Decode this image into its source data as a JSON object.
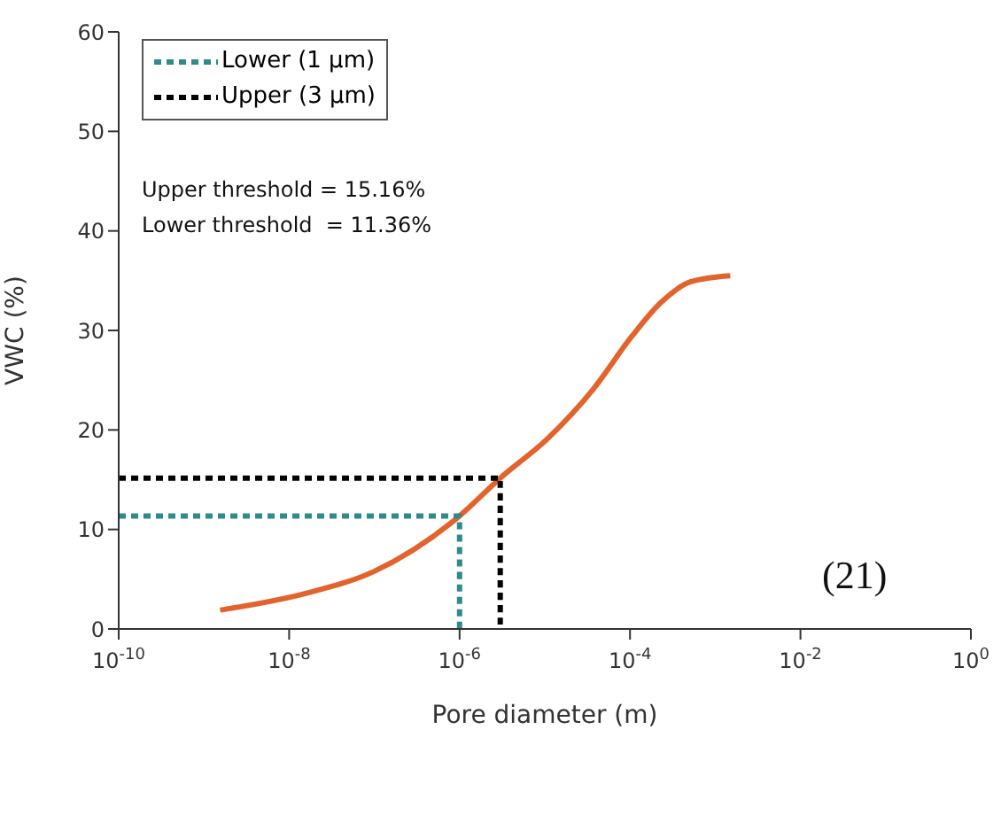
{
  "chart_data": {
    "type": "line",
    "xlabel": "Pore diameter (m)",
    "ylabel": "VWC (%)",
    "log": "x",
    "xlim": [
      1e-10,
      1
    ],
    "ylim": [
      0,
      60
    ],
    "xticks": [
      {
        "value": 1e-10,
        "label": "10$^{-10}$"
      },
      {
        "value": 1e-08,
        "label": "10$^{-8}$"
      },
      {
        "value": 1e-06,
        "label": "10$^{-6}$"
      },
      {
        "value": 0.0001,
        "label": "10$^{-4}$"
      },
      {
        "value": 0.01,
        "label": "10$^{-2}$"
      },
      {
        "value": 1,
        "label": "10$^{0}$"
      }
    ],
    "yticks": [
      0,
      10,
      20,
      30,
      40,
      50,
      60
    ],
    "legend": "top left",
    "marker": "none",
    "series": [
      {
        "color": "#e2632c",
        "line_style": "solid",
        "x": [
          1.55e-09,
          1.6e-08,
          1e-07,
          1e-06,
          3e-06,
          1.1e-05,
          3.7e-05,
          0.000105,
          0.00023,
          0.00052,
          0.0015
        ],
        "values": [
          1.9,
          3.6,
          5.8,
          11.36,
          15.16,
          19.2,
          24.1,
          29.4,
          32.8,
          34.9,
          35.5
        ]
      },
      {
        "name": "Lower (1 µm)",
        "color": "#2e8b88",
        "line_style": "dotted",
        "x": [
          1e-10,
          1e-06,
          1e-06
        ],
        "values": [
          11.36,
          11.36,
          0
        ]
      },
      {
        "name": "Upper (3 µm)",
        "color": "#000000",
        "line_style": "dotted",
        "x": [
          1e-10,
          3e-06,
          3e-06
        ],
        "values": [
          15.16,
          15.16,
          0
        ]
      }
    ],
    "annotations": [
      "Upper threshold = 15.16%",
      "Lower threshold  = 11.36%",
      "(21)"
    ]
  }
}
